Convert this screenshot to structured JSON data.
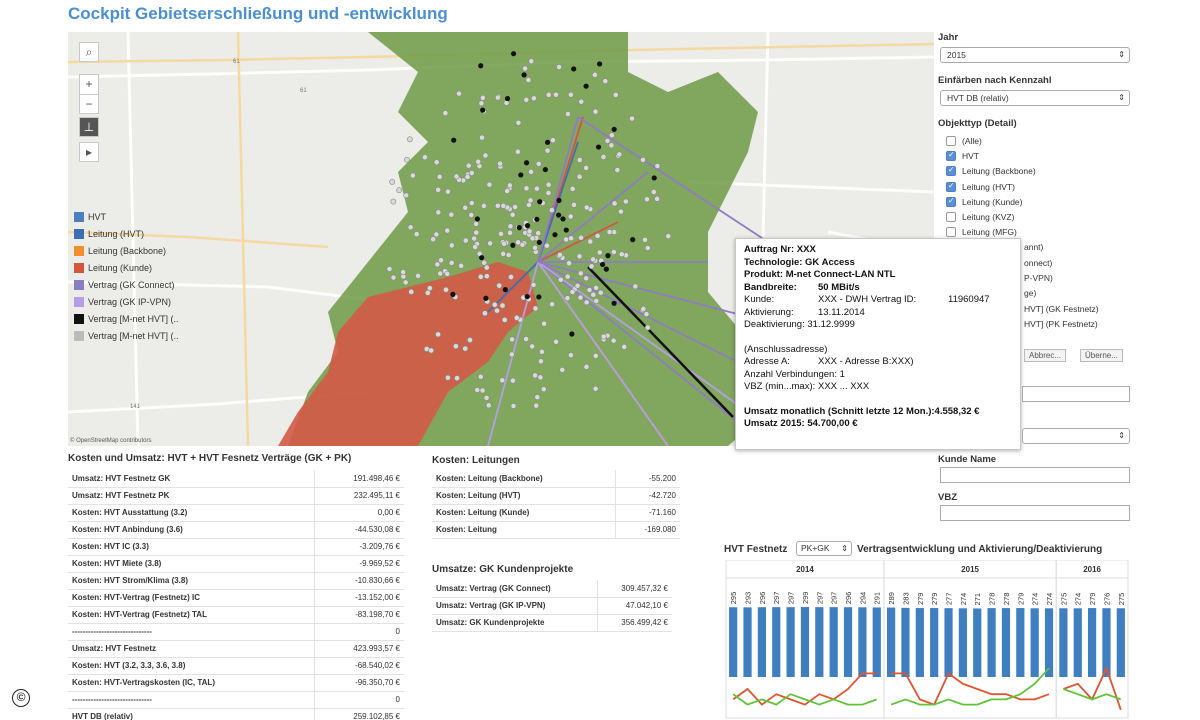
{
  "title": "Cockpit Gebietserschließung und -entwicklung",
  "map": {
    "attribution": "© OpenStreetMap contributors",
    "road_labels": [
      "61",
      "61",
      "141"
    ],
    "legend": [
      {
        "label": "HVT",
        "color": "#4a7fc1"
      },
      {
        "label": "Leitung (HVT)",
        "color": "#3c6fb5"
      },
      {
        "label": "Leitung (Backbone)",
        "color": "#f28e2b"
      },
      {
        "label": "Leitung (Kunde)",
        "color": "#d3553b"
      },
      {
        "label": "Vertrag (GK Connect)",
        "color": "#8e7cc3"
      },
      {
        "label": "Vertrag (GK IP-VPN)",
        "color": "#b49fe6"
      },
      {
        "label": "Vertrag [M-net HVT] (..",
        "color": "#111111"
      },
      {
        "label": "Vertrag [M-net HVT] (..",
        "color": "#bbbbbb"
      }
    ],
    "buttons": {
      "search": "⌕",
      "zoom_in": "+",
      "zoom_out": "−",
      "pin": "⊥",
      "play": "▸"
    }
  },
  "tooltip": {
    "auftrag": "Auftrag Nr: XXX",
    "technologie": "Technologie: GK Access",
    "produkt": "Produkt: M-net Connect-LAN NTL",
    "bandbreite_label": "Bandbreite:",
    "bandbreite_value": "50 MBit/s",
    "kunde_label": "Kunde:",
    "kunde_value": "XXX - DWH Vertrag ID:",
    "kunde_id": "11960947",
    "aktivierung_label": "Aktivierung:",
    "aktivierung_value": "13.11.2014",
    "deaktivierung": "Deaktivierung: 31.12.9999",
    "anschluss": "(Anschlussadresse)",
    "adresse_label": "Adresse A:",
    "adresse_value": "XXX - Adresse B:XXX)",
    "verbindungen": "Anzahl Verbindungen: 1",
    "vbz_label": "VBZ (min...max):",
    "vbz_value": "XXX ... XXX",
    "umsatz_monatlich": "Umsatz monatlich (Schnitt letzte 12 Mon.):4.558,32 €",
    "umsatz_jahr": "Umsatz 2015:  54.700,00 €"
  },
  "panel": {
    "jahr_label": "Jahr",
    "jahr_value": "2015",
    "kennzahl_label": "Einfärben nach Kennzahl",
    "kennzahl_value": "HVT DB (relativ)",
    "objekttyp_label": "Objekttyp (Detail)",
    "objekttyp_options": [
      {
        "label": "(Alle)",
        "checked": false
      },
      {
        "label": "HVT",
        "checked": true
      },
      {
        "label": "Leitung (Backbone)",
        "checked": true
      },
      {
        "label": "Leitung (HVT)",
        "checked": true
      },
      {
        "label": "Leitung (Kunde)",
        "checked": true
      },
      {
        "label": "Leitung (KVZ)",
        "checked": false
      },
      {
        "label": "Leitung (MFG)",
        "checked": false
      }
    ],
    "partial_texts": [
      "annt)",
      "onnect)",
      "P-VPN)",
      "ge)",
      "HVT] (GK Festnetz)",
      "HVT] (PK Festnetz)"
    ],
    "btn_abbrechen": "Abbrec...",
    "btn_uebernehmen": "Überne...",
    "kunde_name_label": "Kunde Name",
    "vbz_label": "VBZ"
  },
  "kosten_umsatz": {
    "title": "Kosten und Umsatz: HVT + HVT Fesnetz Verträge (GK + PK)",
    "rows": [
      {
        "k": "Umsatz: HVT Festnetz GK",
        "v": "191.498,46 €"
      },
      {
        "k": "Umsatz: HVT Festnetz PK",
        "v": "232.495,11 €"
      },
      {
        "k": "Kosten: HVT Ausstattung (3.2)",
        "v": "0,00 €"
      },
      {
        "k": "Kosten: HVT Anbindung (3.6)",
        "v": "-44.530,08 €"
      },
      {
        "k": "Kosten: HVT IC (3.3)",
        "v": "-3.209,76 €"
      },
      {
        "k": "Kosten: HVT Miete (3.8)",
        "v": "-9.969,52 €"
      },
      {
        "k": "Kosten: HVT Strom/Klima (3.8)",
        "v": "-10.830,66 €"
      },
      {
        "k": "Kosten: HVT-Vertrag (Festnetz) IC",
        "v": "-13.152,00 €"
      },
      {
        "k": "Kosten: HVT-Vertrag (Festnetz) TAL",
        "v": "-83.198,70 €"
      },
      {
        "k": "------------------------------",
        "v": "0"
      },
      {
        "k": "Umsatz: HVT Festnetz",
        "v": "423.993,57 €"
      },
      {
        "k": "Kosten: HVT (3.2, 3.3, 3.6, 3.8)",
        "v": "-68.540,02 €"
      },
      {
        "k": "Kosten: HVT-Vertragskosten (IC, TAL)",
        "v": "-96.350,70 €"
      },
      {
        "k": "------------------------------",
        "v": "0"
      },
      {
        "k": "HVT DB (relativ)",
        "v": "259.102,85 €"
      }
    ]
  },
  "kosten_leitungen": {
    "title": "Kosten: Leitungen",
    "rows": [
      {
        "k": "Kosten: Leitung (Backbone)",
        "v": "-55.200"
      },
      {
        "k": "Kosten: Leitung (HVT)",
        "v": "-42.720"
      },
      {
        "k": "Kosten: Leitung (Kunde)",
        "v": "-71.160"
      },
      {
        "k": "Kosten: Leitung",
        "v": "-169.080"
      }
    ]
  },
  "umsatz_gk": {
    "title": "Umsatze: GK Kundenprojekte",
    "rows": [
      {
        "k": "Umsatz: Vertrag (GK Connect)",
        "v": "309.457,32 €"
      },
      {
        "k": "Umsatz: Vertrag (GK IP-VPN)",
        "v": "47.042,10 €"
      },
      {
        "k": "Umsatz: GK Kundenprojekte",
        "v": "356.499,42 €"
      }
    ]
  },
  "chart_header": {
    "prefix": "HVT Festnetz",
    "select_value": "PK+GK",
    "suffix": "Vertragsentwicklung und Aktivierung/Deaktivierung"
  },
  "chart_data": {
    "type": "bar",
    "panels": [
      "2014",
      "2015",
      "2016"
    ],
    "bar_color": "#3f7fc0",
    "series": [
      {
        "panel": "2014",
        "values": [
          295,
          293,
          296,
          297,
          297,
          299,
          297,
          297,
          296,
          294,
          291
        ]
      },
      {
        "panel": "2015",
        "values": [
          289,
          283,
          279,
          279,
          277,
          274,
          271,
          278,
          278,
          279,
          274,
          274
        ]
      },
      {
        "panel": "2016",
        "values": [
          275,
          274,
          279,
          276,
          275
        ]
      }
    ],
    "line_colors": {
      "aktivierung": "#e0542f",
      "deaktivierung": "#5ec43a"
    },
    "lines": {
      "2014": {
        "red": [
          3,
          5,
          2,
          4,
          3,
          2,
          4,
          3,
          5,
          8,
          8
        ],
        "green": [
          4,
          2,
          3,
          2,
          4,
          3,
          2,
          3,
          2,
          2,
          3
        ]
      },
      "2015": {
        "red": [
          8,
          8,
          3,
          2,
          8,
          6,
          5,
          4,
          4,
          3,
          3,
          4
        ],
        "green": [
          2,
          3,
          2,
          2,
          3,
          2,
          2,
          3,
          3,
          4,
          6,
          9
        ]
      },
      "2016": {
        "red": [
          5,
          6,
          3,
          9,
          1
        ],
        "green": [
          5,
          4,
          3,
          4,
          3
        ]
      }
    }
  }
}
